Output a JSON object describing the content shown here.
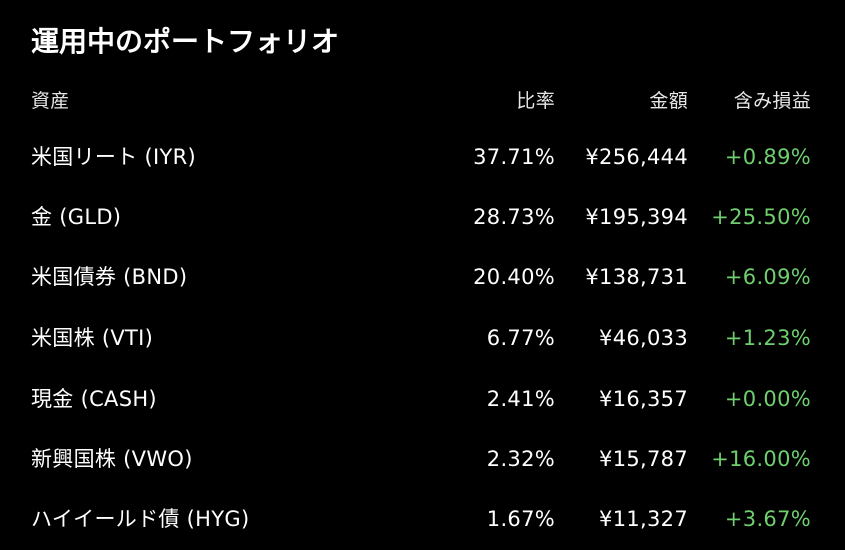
{
  "title": "運用中のポートフォリオ",
  "colors": {
    "background": "#000000",
    "text": "#ffffff",
    "gain": "#6fcf6f"
  },
  "table": {
    "headers": {
      "asset": "資産",
      "ratio": "比率",
      "amount": "金額",
      "pnl": "含み損益"
    },
    "rows": [
      {
        "name": "米国リート (IYR)",
        "ratio": "37.71%",
        "amount": "¥256,444",
        "pnl": "+0.89%"
      },
      {
        "name": "金 (GLD)",
        "ratio": "28.73%",
        "amount": "¥195,394",
        "pnl": "+25.50%"
      },
      {
        "name": "米国債券 (BND)",
        "ratio": "20.40%",
        "amount": "¥138,731",
        "pnl": "+6.09%"
      },
      {
        "name": "米国株 (VTI)",
        "ratio": "6.77%",
        "amount": "¥46,033",
        "pnl": "+1.23%"
      },
      {
        "name": "現金 (CASH)",
        "ratio": "2.41%",
        "amount": "¥16,357",
        "pnl": "+0.00%"
      },
      {
        "name": "新興国株 (VWO)",
        "ratio": "2.32%",
        "amount": "¥15,787",
        "pnl": "+16.00%"
      },
      {
        "name": "ハイイールド債 (HYG)",
        "ratio": "1.67%",
        "amount": "¥11,327",
        "pnl": "+3.67%"
      }
    ]
  }
}
